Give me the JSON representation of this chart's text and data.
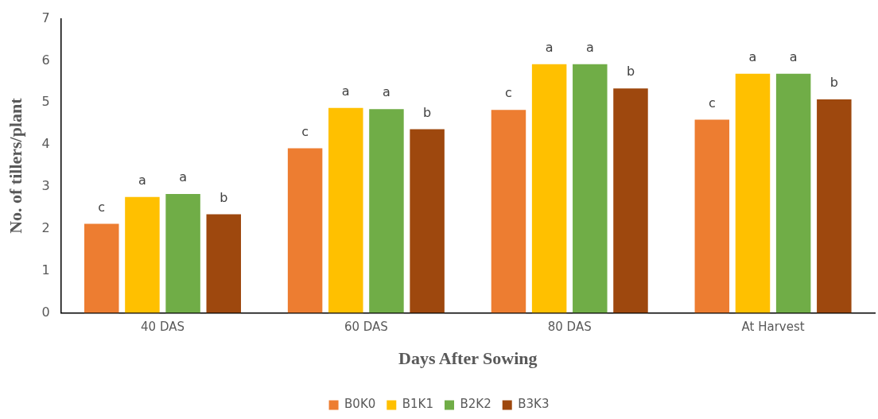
{
  "chart_data": {
    "type": "bar",
    "xlabel": "Days After Sowing",
    "ylabel": "No. of tillers/plant",
    "categories": [
      "40 DAS",
      "60 DAS",
      "80 DAS",
      "At Harvest"
    ],
    "series": [
      {
        "name": "B0K0",
        "color": "#ed7d31",
        "values": [
          2.12,
          3.92,
          4.83,
          4.6
        ],
        "value_labels": [
          "c",
          "c",
          "c",
          "c"
        ]
      },
      {
        "name": "B1K1",
        "color": "#ffc000",
        "values": [
          2.76,
          4.88,
          5.92,
          5.69
        ],
        "value_labels": [
          "a",
          "a",
          "a",
          "a"
        ]
      },
      {
        "name": "B2K2",
        "color": "#70ad47",
        "values": [
          2.83,
          4.85,
          5.92,
          5.69
        ],
        "value_labels": [
          "a",
          "a",
          "a",
          "a"
        ]
      },
      {
        "name": "B3K3",
        "color": "#9e480e",
        "values": [
          2.35,
          4.37,
          5.34,
          5.08
        ],
        "value_labels": [
          "b",
          "b",
          "b",
          "b"
        ]
      }
    ],
    "ylim": [
      0,
      7
    ],
    "yticks": [
      0,
      1,
      2,
      3,
      4,
      5,
      6,
      7
    ],
    "grid": false,
    "legend": "bottom"
  }
}
